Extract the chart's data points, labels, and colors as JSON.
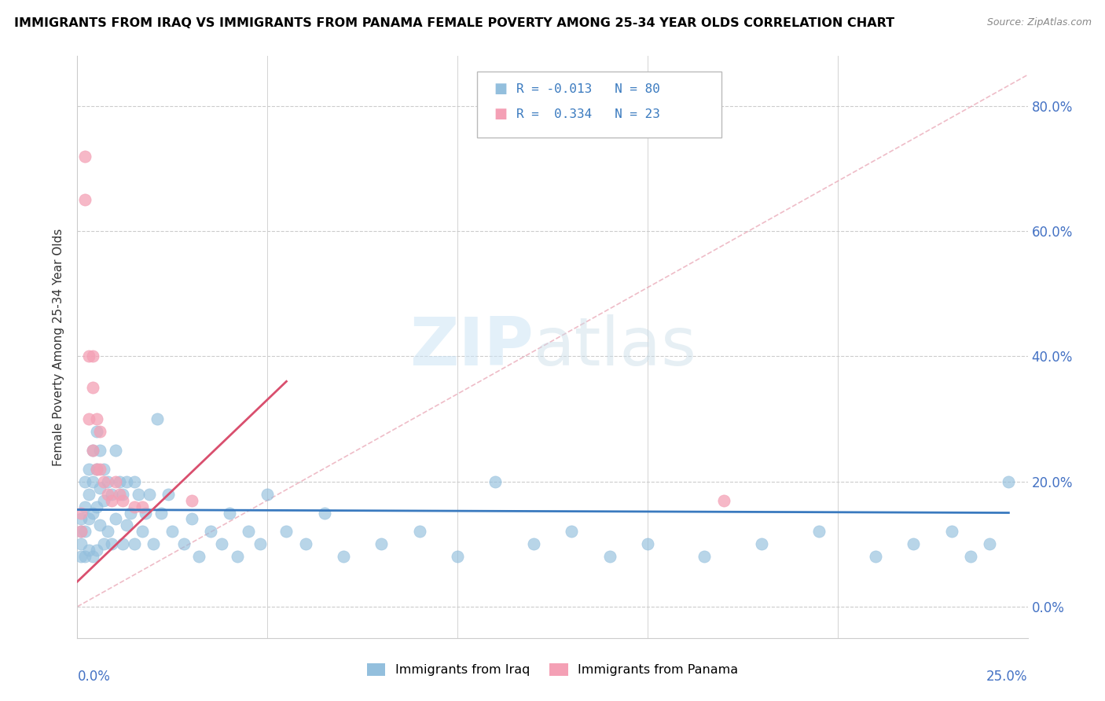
{
  "title": "IMMIGRANTS FROM IRAQ VS IMMIGRANTS FROM PANAMA FEMALE POVERTY AMONG 25-34 YEAR OLDS CORRELATION CHART",
  "source": "Source: ZipAtlas.com",
  "legend_iraq": "Immigrants from Iraq",
  "legend_panama": "Immigrants from Panama",
  "R_iraq": -0.013,
  "N_iraq": 80,
  "R_panama": 0.334,
  "N_panama": 23,
  "color_iraq": "#93bfdd",
  "color_panama": "#f4a0b5",
  "color_iraq_line": "#3a7abf",
  "color_panama_line": "#d94f6e",
  "color_diag": "#e8a0b0",
  "xlim": [
    0.0,
    0.25
  ],
  "ylim": [
    -0.05,
    0.88
  ],
  "yticks": [
    0.0,
    0.2,
    0.4,
    0.6,
    0.8
  ],
  "ytick_labels": [
    "0.0%",
    "20.0%",
    "40.0%",
    "60.0%",
    "80.0%"
  ],
  "ylabel": "Female Poverty Among 25-34 Year Olds",
  "watermark_zip": "ZIP",
  "watermark_atlas": "atlas",
  "iraq_x": [
    0.001,
    0.001,
    0.001,
    0.001,
    0.002,
    0.002,
    0.002,
    0.002,
    0.003,
    0.003,
    0.003,
    0.003,
    0.004,
    0.004,
    0.004,
    0.004,
    0.005,
    0.005,
    0.005,
    0.005,
    0.006,
    0.006,
    0.006,
    0.007,
    0.007,
    0.007,
    0.008,
    0.008,
    0.009,
    0.009,
    0.01,
    0.01,
    0.011,
    0.012,
    0.012,
    0.013,
    0.013,
    0.014,
    0.015,
    0.015,
    0.016,
    0.017,
    0.018,
    0.019,
    0.02,
    0.021,
    0.022,
    0.024,
    0.025,
    0.028,
    0.03,
    0.032,
    0.035,
    0.038,
    0.04,
    0.042,
    0.045,
    0.048,
    0.05,
    0.055,
    0.06,
    0.065,
    0.07,
    0.08,
    0.09,
    0.1,
    0.11,
    0.12,
    0.13,
    0.14,
    0.15,
    0.165,
    0.18,
    0.195,
    0.21,
    0.22,
    0.23,
    0.235,
    0.24,
    0.245
  ],
  "iraq_y": [
    0.14,
    0.12,
    0.1,
    0.08,
    0.2,
    0.16,
    0.12,
    0.08,
    0.22,
    0.18,
    0.14,
    0.09,
    0.25,
    0.2,
    0.15,
    0.08,
    0.28,
    0.22,
    0.16,
    0.09,
    0.25,
    0.19,
    0.13,
    0.22,
    0.17,
    0.1,
    0.2,
    0.12,
    0.18,
    0.1,
    0.25,
    0.14,
    0.2,
    0.18,
    0.1,
    0.2,
    0.13,
    0.15,
    0.2,
    0.1,
    0.18,
    0.12,
    0.15,
    0.18,
    0.1,
    0.3,
    0.15,
    0.18,
    0.12,
    0.1,
    0.14,
    0.08,
    0.12,
    0.1,
    0.15,
    0.08,
    0.12,
    0.1,
    0.18,
    0.12,
    0.1,
    0.15,
    0.08,
    0.1,
    0.12,
    0.08,
    0.2,
    0.1,
    0.12,
    0.08,
    0.1,
    0.08,
    0.1,
    0.12,
    0.08,
    0.1,
    0.12,
    0.08,
    0.1,
    0.2
  ],
  "panama_x": [
    0.001,
    0.001,
    0.002,
    0.002,
    0.003,
    0.003,
    0.004,
    0.004,
    0.004,
    0.005,
    0.005,
    0.006,
    0.006,
    0.007,
    0.008,
    0.009,
    0.01,
    0.011,
    0.012,
    0.015,
    0.017,
    0.03,
    0.17
  ],
  "panama_y": [
    0.15,
    0.12,
    0.72,
    0.65,
    0.4,
    0.3,
    0.4,
    0.35,
    0.25,
    0.3,
    0.22,
    0.28,
    0.22,
    0.2,
    0.18,
    0.17,
    0.2,
    0.18,
    0.17,
    0.16,
    0.16,
    0.17,
    0.17
  ],
  "iraq_line_x": [
    0.0,
    0.245
  ],
  "iraq_line_y": [
    0.155,
    0.15
  ],
  "panama_line_x": [
    0.0,
    0.055
  ],
  "panama_line_y": [
    0.04,
    0.36
  ]
}
